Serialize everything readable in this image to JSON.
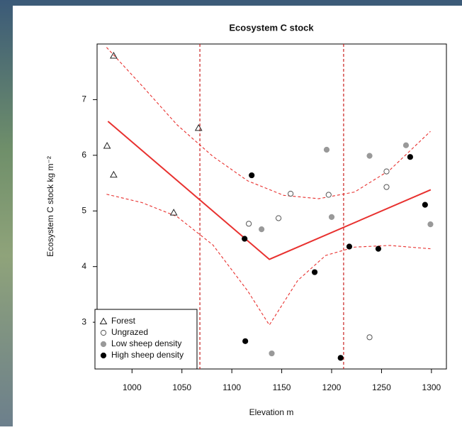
{
  "chart_data": {
    "type": "scatter",
    "title": "Ecosystem C stock",
    "xlabel": "Elevation m",
    "ylabel": "Ecosystem C stock kg m⁻²",
    "xlim": [
      965,
      1315
    ],
    "ylim": [
      2.16,
      8.0
    ],
    "xticks": [
      1000,
      1050,
      1100,
      1150,
      1200,
      1250,
      1300
    ],
    "yticks": [
      3,
      4,
      5,
      6,
      7
    ],
    "legend": "bottomleft",
    "series": [
      {
        "name": "Forest",
        "marker": "triangle",
        "color": "#222222",
        "filled": false,
        "x": [
          981.6,
          975,
          981.6,
          1066.7,
          1041.8
        ],
        "values": [
          7.79,
          6.17,
          5.65,
          6.49,
          4.97
        ]
      },
      {
        "name": "Ungrazed",
        "marker": "circle",
        "color": "#555555",
        "filled": false,
        "x": [
          1117,
          1146.8,
          1158.9,
          1197,
          1255,
          1255,
          1238
        ],
        "values": [
          4.77,
          4.87,
          5.31,
          5.29,
          5.71,
          5.43,
          2.73
        ]
      },
      {
        "name": "Low sheep density",
        "marker": "circle",
        "color": "#999999",
        "filled": true,
        "x": [
          1129.8,
          1195,
          1200,
          1238,
          1274.5,
          1299,
          1140
        ],
        "values": [
          4.67,
          6.1,
          4.89,
          5.99,
          6.18,
          4.76,
          2.44
        ]
      },
      {
        "name": "High sheep density",
        "marker": "circle",
        "color": "#000000",
        "filled": true,
        "x": [
          1119.9,
          1112.8,
          1183,
          1217.7,
          1246.8,
          1278.7,
          1293.6,
          1113.5,
          1209
        ],
        "values": [
          5.64,
          4.5,
          3.9,
          4.36,
          4.32,
          5.97,
          5.11,
          2.66,
          2.36
        ]
      }
    ],
    "lines": [
      {
        "color": "#e8312f",
        "dashed": false,
        "x": [
          975.9,
          1137.6,
          1299.3
        ],
        "values": [
          6.61,
          4.13,
          5.38
        ]
      },
      {
        "color": "#e8312f",
        "dashed": true,
        "x": [
          974.5,
          1010,
          1045,
          1081,
          1116,
          1152,
          1187,
          1223,
          1258,
          1299
        ],
        "values": [
          7.94,
          7.25,
          6.55,
          5.98,
          5.54,
          5.28,
          5.22,
          5.34,
          5.73,
          6.43
        ]
      },
      {
        "color": "#e8312f",
        "dashed": true,
        "x": [
          974.5,
          1010,
          1045,
          1081,
          1116,
          1137.6,
          1166,
          1194,
          1223,
          1258,
          1299
        ],
        "values": [
          5.3,
          5.15,
          4.9,
          4.39,
          3.56,
          2.95,
          3.75,
          4.2,
          4.35,
          4.38,
          4.32
        ]
      }
    ],
    "vlines": {
      "color": "#c8201e",
      "x": [
        1068,
        1212
      ]
    }
  }
}
